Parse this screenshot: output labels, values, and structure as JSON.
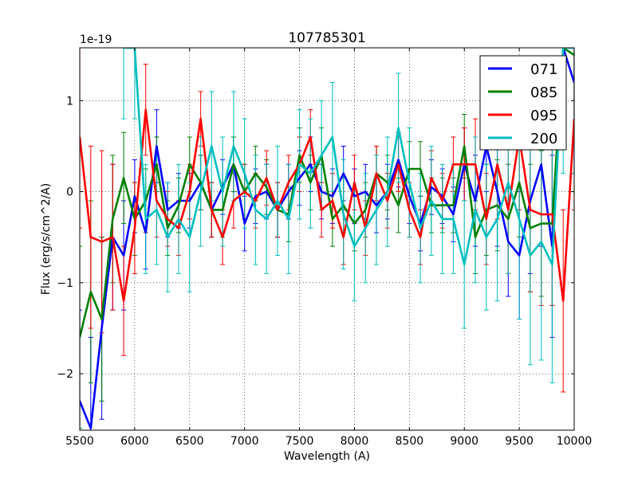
{
  "chart_data": {
    "type": "line",
    "title": "107785301",
    "xlabel": "Wavelength (A)",
    "ylabel": "Flux (erg/s/cm^2/A)",
    "y_offset_label": "1e-19",
    "xlim": [
      5500,
      10000
    ],
    "ylim": [
      -2.62,
      1.58
    ],
    "xticks": [
      5500,
      6000,
      6500,
      7000,
      7500,
      8000,
      8500,
      9000,
      9500,
      10000
    ],
    "xtick_labels": [
      "5500",
      "6000",
      "6500",
      "7000",
      "7500",
      "8000",
      "8500",
      "9000",
      "9500",
      "10000"
    ],
    "yticks": [
      -2,
      -1,
      0,
      1
    ],
    "ytick_labels": [
      "−2",
      "−1",
      "0",
      "1"
    ],
    "grid": true,
    "legend_position": "top-right",
    "x": [
      5500,
      5600,
      5700,
      5800,
      5900,
      6000,
      6100,
      6200,
      6300,
      6400,
      6500,
      6600,
      6700,
      6800,
      6900,
      7000,
      7100,
      7200,
      7300,
      7400,
      7500,
      7600,
      7700,
      7800,
      7900,
      8000,
      8100,
      8200,
      8300,
      8400,
      8500,
      8600,
      8700,
      8800,
      8900,
      9000,
      9100,
      9200,
      9300,
      9400,
      9500,
      9600,
      9700,
      9800,
      9900,
      10000
    ],
    "series": [
      {
        "name": "071",
        "color": "#0000ff",
        "values": [
          -2.3,
          -2.6,
          -1.5,
          -0.5,
          -0.7,
          -0.05,
          -0.45,
          0.5,
          -0.2,
          -0.1,
          -0.1,
          0.1,
          -0.2,
          0.05,
          0.3,
          -0.35,
          -0.05,
          0.0,
          -0.2,
          0.0,
          0.15,
          0.3,
          0.0,
          -0.05,
          0.2,
          -0.05,
          0.0,
          -0.15,
          0.0,
          0.35,
          -0.05,
          -0.35,
          0.05,
          -0.05,
          -0.25,
          0.3,
          -0.1,
          0.5,
          0.0,
          -0.55,
          -0.7,
          -0.1,
          0.3,
          -0.6,
          1.8,
          1.2
        ],
        "errors": [
          1,
          1,
          1,
          0.8,
          0.6,
          0.4,
          0.4,
          0.4,
          0.3,
          0.3,
          0.3,
          0.3,
          0.3,
          0.3,
          0.3,
          0.3,
          0.3,
          0.3,
          0.3,
          0.3,
          0.3,
          0.3,
          0.3,
          0.3,
          0.3,
          0.3,
          0.3,
          0.3,
          0.3,
          0.3,
          0.3,
          0.3,
          0.3,
          0.3,
          0.3,
          0.4,
          0.5,
          0.5,
          0.6,
          0.6,
          0.7,
          0.8,
          0.9,
          1,
          1,
          1
        ]
      },
      {
        "name": "085",
        "color": "#008000",
        "values": [
          -1.6,
          -1.1,
          -1.4,
          -0.3,
          0.15,
          -0.3,
          -0.1,
          0.3,
          -0.4,
          -0.15,
          0.3,
          0.1,
          -0.2,
          -0.2,
          0.3,
          0.0,
          0.2,
          0.05,
          -0.2,
          -0.25,
          0.4,
          0.1,
          0.4,
          -0.3,
          -0.15,
          -0.35,
          -0.2,
          0.2,
          0.1,
          -0.15,
          0.25,
          0.25,
          -0.15,
          -0.15,
          -0.15,
          0.5,
          -0.5,
          -0.2,
          -0.15,
          -0.3,
          0.1,
          -0.4,
          -0.35,
          -0.35,
          1.8,
          1.5
        ],
        "errors": [
          1,
          1,
          0.9,
          0.7,
          0.5,
          0.4,
          0.35,
          0.3,
          0.3,
          0.3,
          0.3,
          0.3,
          0.3,
          0.3,
          0.3,
          0.3,
          0.3,
          0.3,
          0.3,
          0.3,
          0.3,
          0.3,
          0.3,
          0.3,
          0.3,
          0.3,
          0.3,
          0.3,
          0.3,
          0.3,
          0.3,
          0.3,
          0.3,
          0.3,
          0.3,
          0.35,
          0.4,
          0.5,
          0.5,
          0.6,
          0.6,
          0.7,
          0.8,
          0.9,
          1,
          1
        ]
      },
      {
        "name": "095",
        "color": "#ff0000",
        "values": [
          0.6,
          -0.5,
          -0.55,
          -0.5,
          -1.2,
          -0.4,
          0.9,
          -0.1,
          -0.3,
          -0.4,
          0.0,
          0.8,
          -0.2,
          -0.5,
          -0.1,
          0.0,
          -0.1,
          0.15,
          -0.2,
          0.1,
          0.3,
          0.6,
          -0.2,
          -0.1,
          -0.5,
          0.1,
          -0.4,
          0.2,
          -0.1,
          0.3,
          -0.2,
          -0.5,
          0.15,
          -0.1,
          0.3,
          0.3,
          0.3,
          -0.3,
          0.3,
          -0.2,
          0.6,
          -0.2,
          -0.25,
          -0.25,
          -1.2,
          0.8
        ],
        "errors": [
          1,
          1,
          1,
          0.8,
          0.6,
          0.5,
          0.5,
          0.4,
          0.3,
          0.3,
          0.3,
          0.3,
          0.3,
          0.3,
          0.3,
          0.3,
          0.3,
          0.3,
          0.3,
          0.3,
          0.3,
          0.3,
          0.3,
          0.3,
          0.3,
          0.3,
          0.3,
          0.3,
          0.3,
          0.3,
          0.3,
          0.3,
          0.3,
          0.3,
          0.3,
          0.4,
          0.5,
          0.5,
          0.6,
          0.7,
          0.8,
          0.9,
          1,
          1,
          1,
          1
        ]
      },
      {
        "name": "200",
        "color": "#00bfbf",
        "values": [
          null,
          null,
          null,
          null,
          1.6,
          1.6,
          -0.3,
          -0.2,
          -0.5,
          -0.3,
          -0.5,
          0.0,
          0.5,
          0.0,
          0.5,
          0.2,
          -0.2,
          -0.3,
          -0.1,
          -0.3,
          0.3,
          0.2,
          0.4,
          0.6,
          -0.25,
          -0.6,
          -0.4,
          -0.2,
          0.0,
          0.7,
          0.1,
          -0.4,
          -0.1,
          -0.3,
          -0.3,
          -0.8,
          -0.2,
          -0.5,
          -0.3,
          0.1,
          -0.3,
          -0.7,
          -0.55,
          -0.8,
          1.6,
          1.6
        ],
        "errors": [
          0,
          0,
          0,
          0,
          0.8,
          0.8,
          0.6,
          0.6,
          0.6,
          0.6,
          0.6,
          0.6,
          0.6,
          0.6,
          0.6,
          0.6,
          0.6,
          0.6,
          0.6,
          0.6,
          0.6,
          0.6,
          0.6,
          0.6,
          0.6,
          0.6,
          0.6,
          0.6,
          0.6,
          0.6,
          0.6,
          0.6,
          0.6,
          0.6,
          0.6,
          0.7,
          0.8,
          0.8,
          0.9,
          1,
          1.1,
          1.2,
          1.3,
          1.3,
          1.4,
          1.4
        ]
      }
    ]
  }
}
